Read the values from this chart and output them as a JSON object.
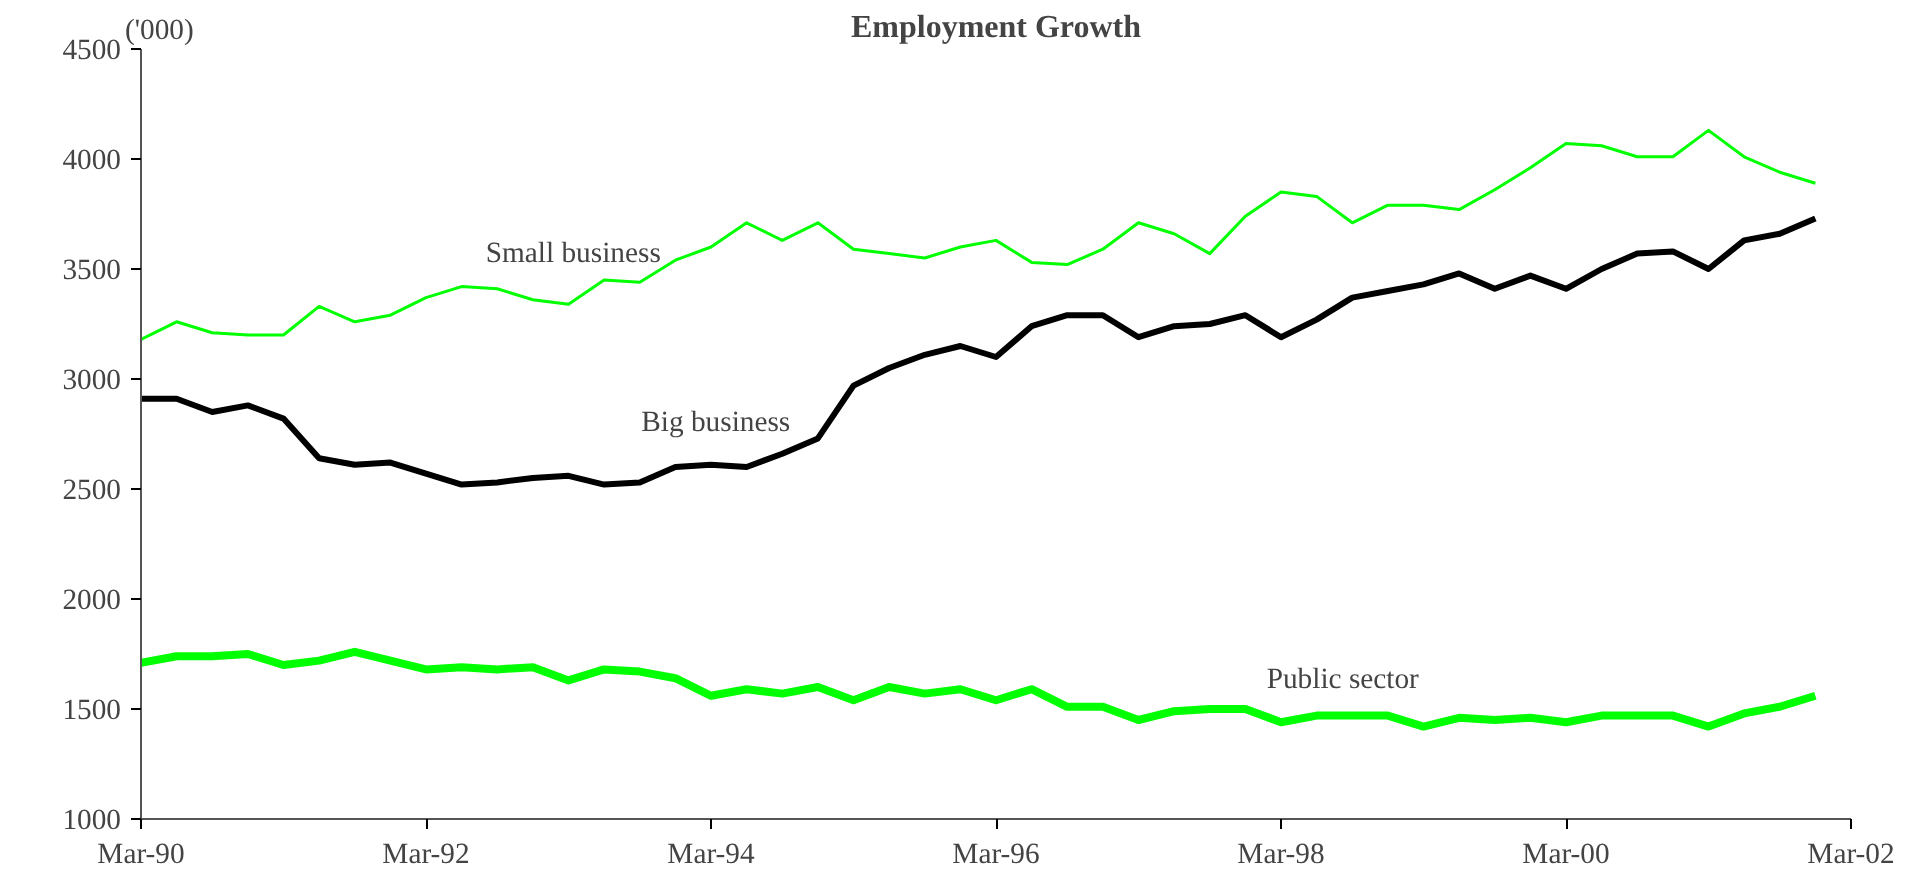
{
  "chart_data": {
    "type": "line",
    "title": "Employment Growth",
    "annotations": [
      "('000)"
    ],
    "x": [
      "1990-03",
      "1990-06",
      "1990-09",
      "1990-12",
      "1991-03",
      "1991-06",
      "1991-09",
      "1991-12",
      "1992-03",
      "1992-06",
      "1992-09",
      "1992-12",
      "1993-03",
      "1993-06",
      "1993-09",
      "1993-12",
      "1994-03",
      "1994-06",
      "1994-09",
      "1994-12",
      "1995-03",
      "1995-06",
      "1995-09",
      "1995-12",
      "1996-03",
      "1996-06",
      "1996-09",
      "1996-12",
      "1997-03",
      "1997-06",
      "1997-09",
      "1997-12",
      "1998-03",
      "1998-06",
      "1998-09",
      "1998-12",
      "1999-03",
      "1999-06",
      "1999-09",
      "1999-12",
      "2000-03",
      "2000-06",
      "2000-09",
      "2000-12",
      "2001-03",
      "2001-06",
      "2001-09",
      "2001-12"
    ],
    "series": [
      {
        "name": "Small business",
        "color": "#00ff00",
        "values": [
          3180,
          3260,
          3210,
          3200,
          3200,
          3330,
          3260,
          3290,
          3370,
          3420,
          3410,
          3360,
          3340,
          3450,
          3440,
          3540,
          3600,
          3710,
          3630,
          3710,
          3590,
          3570,
          3550,
          3600,
          3630,
          3530,
          3520,
          3590,
          3710,
          3660,
          3570,
          3740,
          3850,
          3830,
          3710,
          3790,
          3790,
          3770,
          3860,
          3960,
          4070,
          4060,
          4010,
          4010,
          4130,
          4010,
          3940,
          3890
        ]
      },
      {
        "name": "Big business",
        "color": "#000000",
        "values": [
          2910,
          2910,
          2850,
          2880,
          2820,
          2640,
          2610,
          2620,
          2570,
          2520,
          2530,
          2550,
          2560,
          2520,
          2530,
          2600,
          2610,
          2600,
          2660,
          2730,
          2970,
          3050,
          3110,
          3150,
          3100,
          3240,
          3290,
          3290,
          3190,
          3240,
          3250,
          3290,
          3190,
          3270,
          3370,
          3400,
          3430,
          3480,
          3410,
          3470,
          3410,
          3500,
          3570,
          3580,
          3500,
          3630,
          3660,
          3730
        ]
      },
      {
        "name": "Public sector",
        "color": "#00ff00",
        "values": [
          1710,
          1740,
          1740,
          1750,
          1700,
          1720,
          1760,
          1720,
          1680,
          1690,
          1680,
          1690,
          1630,
          1680,
          1670,
          1640,
          1560,
          1590,
          1570,
          1600,
          1540,
          1600,
          1570,
          1590,
          1540,
          1590,
          1510,
          1510,
          1450,
          1490,
          1500,
          1500,
          1440,
          1470,
          1470,
          1470,
          1420,
          1460,
          1450,
          1460,
          1440,
          1470,
          1470,
          1470,
          1420,
          1480,
          1510,
          1560
        ]
      }
    ],
    "xlim": [
      "1990-03",
      "2002-03"
    ],
    "xticks": [
      {
        "value": "1990-03",
        "label": "Mar-90"
      },
      {
        "value": "1992-03",
        "label": "Mar-92"
      },
      {
        "value": "1994-03",
        "label": "Mar-94"
      },
      {
        "value": "1996-03",
        "label": "Mar-96"
      },
      {
        "value": "1998-03",
        "label": "Mar-98"
      },
      {
        "value": "2000-03",
        "label": "Mar-00"
      },
      {
        "value": "2002-03",
        "label": "Mar-02"
      }
    ],
    "ylim": [
      1000,
      4500
    ],
    "yticks": [
      1000,
      1500,
      2000,
      2500,
      3000,
      3500,
      4000,
      4500
    ],
    "grid": false
  }
}
